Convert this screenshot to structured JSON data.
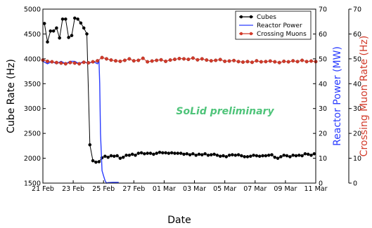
{
  "chart_data": {
    "type": "line",
    "annotation": "SoLid preliminary",
    "annotation_color": "#4fc47a",
    "xlabel": "Date",
    "ylabel_left": "Cube Rate (Hz)",
    "ylabel_right_inner": "Reactor Power (MW)",
    "ylabel_right_outer": "Crossing Muon Rate (Hz)",
    "ylim_left": [
      1500,
      5000
    ],
    "ylim_right_inner": [
      0,
      70
    ],
    "ylim_right_outer": [
      0,
      70
    ],
    "yticks_left": [
      1500,
      2000,
      2500,
      3000,
      3500,
      4000,
      4500,
      5000
    ],
    "yticks_right_inner": [
      0,
      10,
      20,
      30,
      40,
      50,
      60,
      70
    ],
    "yticks_right_outer": [
      0,
      10,
      20,
      30,
      40,
      50,
      60,
      70
    ],
    "x_ticks": [
      "21 Feb",
      "23 Feb",
      "25 Feb",
      "27 Feb",
      "01 Mar",
      "03 Mar",
      "05 Mar",
      "07 Mar",
      "09 Mar",
      "11 Mar"
    ],
    "x_range_days": [
      0,
      18
    ],
    "legend": "top-right",
    "colors": {
      "cubes": "#000000",
      "reactor": "#2a3cff",
      "muons": "#d23a2a",
      "ylabel_inner": "#2a3cff",
      "ylabel_outer": "#d23a2a"
    },
    "series": [
      {
        "name": "Cubes",
        "axis": "left",
        "x": [
          0.1,
          0.3,
          0.5,
          0.7,
          0.9,
          1.1,
          1.3,
          1.5,
          1.7,
          1.9,
          2.1,
          2.3,
          2.5,
          2.7,
          2.9,
          3.1,
          3.3,
          3.5,
          3.7,
          3.9,
          4.1,
          4.3,
          4.5,
          4.7,
          4.9,
          5.1,
          5.3,
          5.5,
          5.7,
          5.9,
          6.1,
          6.3,
          6.5,
          6.7,
          6.9,
          7.1,
          7.3,
          7.5,
          7.7,
          7.9,
          8.1,
          8.3,
          8.5,
          8.7,
          8.9,
          9.1,
          9.3,
          9.5,
          9.7,
          9.9,
          10.1,
          10.3,
          10.5,
          10.7,
          10.9,
          11.1,
          11.3,
          11.5,
          11.7,
          11.9,
          12.1,
          12.3,
          12.5,
          12.7,
          12.9,
          13.1,
          13.3,
          13.5,
          13.7,
          13.9,
          14.1,
          14.3,
          14.5,
          14.7,
          14.9,
          15.1,
          15.3,
          15.5,
          15.7,
          15.9,
          16.1,
          16.3,
          16.5,
          16.7,
          16.9,
          17.1,
          17.3,
          17.5,
          17.7,
          17.9
        ],
        "values": [
          4710,
          4340,
          4560,
          4560,
          4620,
          4420,
          4800,
          4800,
          4430,
          4470,
          4820,
          4800,
          4720,
          4620,
          4500,
          2270,
          1950,
          1920,
          1930,
          2010,
          2040,
          2020,
          2050,
          2040,
          2050,
          2000,
          2020,
          2060,
          2060,
          2080,
          2060,
          2100,
          2110,
          2090,
          2100,
          2100,
          2080,
          2100,
          2120,
          2110,
          2110,
          2100,
          2110,
          2100,
          2100,
          2100,
          2080,
          2090,
          2070,
          2090,
          2060,
          2080,
          2070,
          2090,
          2060,
          2070,
          2080,
          2060,
          2040,
          2050,
          2030,
          2060,
          2070,
          2060,
          2070,
          2050,
          2030,
          2030,
          2040,
          2060,
          2050,
          2040,
          2050,
          2050,
          2060,
          2070,
          2020,
          2000,
          2030,
          2060,
          2050,
          2030,
          2060,
          2050,
          2060,
          2050,
          2090,
          2080,
          2060,
          2090
        ]
      },
      {
        "name": "Reactor Power",
        "axis": "right_inner",
        "x": [
          0,
          0.3,
          0.6,
          0.9,
          1.2,
          1.5,
          1.8,
          2.1,
          2.4,
          2.7,
          3.0,
          3.3,
          3.6,
          3.7,
          3.75,
          3.8,
          3.9,
          4.0,
          4.1,
          4.2,
          4.3,
          4.6,
          5.0
        ],
        "values": [
          49,
          48,
          49,
          48,
          49,
          48,
          49,
          49,
          48,
          49,
          48,
          49,
          48,
          49,
          40,
          20,
          5,
          3,
          1,
          0,
          0.2,
          0.3,
          0.3
        ]
      },
      {
        "name": "Crossing Muons",
        "axis": "right_outer",
        "x": [
          0,
          0.3,
          0.6,
          0.9,
          1.2,
          1.5,
          1.8,
          2.1,
          2.4,
          2.7,
          3.0,
          3.3,
          3.6,
          3.9,
          4.2,
          4.5,
          4.8,
          5.1,
          5.4,
          5.7,
          6.0,
          6.3,
          6.6,
          6.9,
          7.2,
          7.5,
          7.8,
          8.1,
          8.4,
          8.7,
          9.0,
          9.3,
          9.6,
          9.9,
          10.2,
          10.5,
          10.8,
          11.1,
          11.4,
          11.7,
          12.0,
          12.3,
          12.6,
          12.9,
          13.2,
          13.5,
          13.8,
          14.1,
          14.4,
          14.7,
          15.0,
          15.3,
          15.6,
          15.9,
          16.2,
          16.5,
          16.8,
          17.1,
          17.4,
          17.7,
          18.0
        ],
        "values": [
          49.5,
          49.0,
          48.8,
          48.5,
          48.3,
          48.0,
          48.5,
          48.3,
          48.0,
          48.6,
          48.4,
          48.8,
          49.2,
          50.5,
          50.0,
          49.5,
          49.2,
          49.0,
          49.4,
          50.0,
          49.2,
          49.4,
          50.2,
          48.8,
          49.1,
          49.4,
          49.6,
          49.0,
          49.5,
          49.8,
          50.1,
          50.0,
          49.8,
          50.3,
          49.6,
          50.0,
          49.5,
          49.2,
          49.4,
          49.7,
          49.0,
          49.1,
          49.3,
          48.9,
          48.7,
          48.9,
          48.6,
          49.2,
          48.8,
          48.9,
          49.1,
          48.8,
          48.5,
          49.0,
          48.8,
          49.2,
          48.9,
          49.4,
          48.9,
          49.1,
          48.9
        ]
      }
    ]
  }
}
